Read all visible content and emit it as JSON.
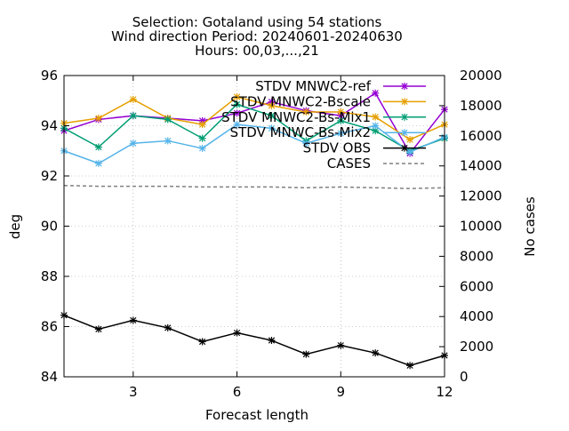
{
  "chart_data": {
    "type": "line",
    "title": [
      "Selection: Gotaland using    54 stations",
      "Wind direction   Period: 20240601-20240630",
      "Hours: 00,03,...,21"
    ],
    "xlabel": "Forecast length",
    "ylabel": "deg",
    "y2label": "No cases",
    "xlim": [
      1,
      12
    ],
    "ylim": [
      84,
      96
    ],
    "y2lim": [
      0,
      20000
    ],
    "xticks": [
      3,
      6,
      9,
      12
    ],
    "yticks": [
      84,
      86,
      88,
      90,
      92,
      94,
      96
    ],
    "y2ticks": [
      0,
      2000,
      4000,
      6000,
      8000,
      10000,
      12000,
      14000,
      16000,
      18000,
      20000
    ],
    "grid": true,
    "legend_position": "top-right",
    "x": [
      1,
      2,
      3,
      4,
      5,
      6,
      7,
      8,
      9,
      10,
      11,
      12
    ],
    "series": [
      {
        "name": "STDV MNWC2-ref",
        "axis": "left",
        "color": "#9400d3",
        "style": "solid",
        "marker": "star",
        "values": [
          93.8,
          94.25,
          94.4,
          94.3,
          94.2,
          94.5,
          94.95,
          94.6,
          94.4,
          95.3,
          92.9,
          94.65
        ]
      },
      {
        "name": "STDV MNWC2-Bscale",
        "axis": "left",
        "color": "#e69f00",
        "style": "solid",
        "marker": "star",
        "values": [
          94.1,
          94.3,
          95.05,
          94.3,
          94.05,
          95.15,
          94.8,
          94.55,
          94.55,
          94.35,
          93.45,
          94.05
        ]
      },
      {
        "name": "STDV MNWC2-Bs-Mix1",
        "axis": "left",
        "color": "#009e73",
        "style": "solid",
        "marker": "star",
        "values": [
          93.9,
          93.15,
          94.4,
          94.25,
          93.5,
          94.85,
          94.4,
          93.4,
          94.2,
          93.8,
          93.0,
          93.5
        ]
      },
      {
        "name": "STDV MNWC-Bs-Mix2",
        "axis": "left",
        "color": "#56b4e9",
        "style": "solid",
        "marker": "star",
        "values": [
          93.0,
          92.5,
          93.3,
          93.4,
          93.1,
          94.05,
          93.9,
          93.3,
          93.7,
          94.0,
          92.95,
          93.55
        ]
      },
      {
        "name": "STDV OBS",
        "axis": "left",
        "color": "#000000",
        "style": "solid",
        "marker": "star",
        "values": [
          86.45,
          85.9,
          86.25,
          85.95,
          85.4,
          85.75,
          85.45,
          84.9,
          85.25,
          84.95,
          84.45,
          84.85
        ]
      },
      {
        "name": "CASES",
        "axis": "right",
        "color": "#808080",
        "style": "dashed",
        "marker": "none",
        "values": [
          12700,
          12650,
          12650,
          12650,
          12600,
          12600,
          12600,
          12550,
          12600,
          12550,
          12500,
          12550
        ]
      }
    ]
  }
}
